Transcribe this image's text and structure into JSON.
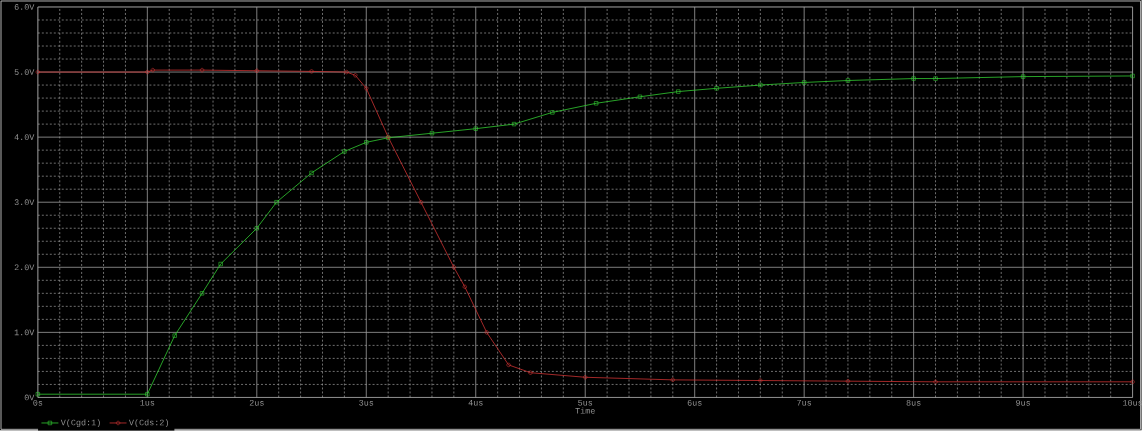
{
  "chart_data": {
    "type": "line",
    "xlabel": "Time",
    "xlim": [
      0,
      10
    ],
    "ylim": [
      0,
      6
    ],
    "xticks": [
      {
        "value": 0,
        "label": "0s"
      },
      {
        "value": 1,
        "label": "1us"
      },
      {
        "value": 2,
        "label": "2us"
      },
      {
        "value": 3,
        "label": "3us"
      },
      {
        "value": 4,
        "label": "4us"
      },
      {
        "value": 5,
        "label": "5us"
      },
      {
        "value": 6,
        "label": "6us"
      },
      {
        "value": 7,
        "label": "7us"
      },
      {
        "value": 8,
        "label": "8us"
      },
      {
        "value": 9,
        "label": "9us"
      },
      {
        "value": 10,
        "label": "10us"
      }
    ],
    "yticks": [
      {
        "value": 0,
        "label": "0V"
      },
      {
        "value": 1,
        "label": "1.0V"
      },
      {
        "value": 2,
        "label": "2.0V"
      },
      {
        "value": 3,
        "label": "3.0V"
      },
      {
        "value": 4,
        "label": "4.0V"
      },
      {
        "value": 5,
        "label": "5.0V"
      },
      {
        "value": 6,
        "label": "6.0V"
      }
    ],
    "grid": true,
    "legend": "bottom left",
    "line_style": "solid",
    "series": [
      {
        "name": "V(Cgd:1)",
        "color": "#33cc33",
        "marker": "square",
        "x": [
          0,
          1.0,
          1.25,
          1.5,
          1.67,
          2.0,
          2.18,
          2.5,
          2.8,
          3.0,
          3.2,
          3.6,
          4.0,
          4.35,
          4.7,
          5.1,
          5.5,
          5.85,
          6.2,
          6.6,
          7.0,
          7.4,
          8.0,
          8.2,
          9.0,
          10.0
        ],
        "values": [
          0.05,
          0.05,
          0.95,
          1.6,
          2.05,
          2.6,
          3.0,
          3.45,
          3.78,
          3.92,
          3.99,
          4.06,
          4.13,
          4.2,
          4.38,
          4.52,
          4.62,
          4.7,
          4.75,
          4.8,
          4.84,
          4.87,
          4.9,
          4.9,
          4.93,
          4.94
        ]
      },
      {
        "name": "V(Cds:2)",
        "color": "#cc3333",
        "marker": "circle",
        "x": [
          0,
          1.0,
          1.05,
          1.5,
          2.0,
          2.5,
          2.82,
          2.9,
          3.0,
          3.2,
          3.5,
          3.8,
          3.9,
          4.1,
          4.3,
          4.5,
          5.0,
          5.8,
          6.6,
          7.4,
          8.2,
          10.0
        ],
        "values": [
          5.0,
          5.0,
          5.03,
          5.03,
          5.02,
          5.01,
          5.0,
          4.95,
          4.75,
          4.0,
          3.0,
          2.0,
          1.7,
          1.0,
          0.5,
          0.38,
          0.31,
          0.27,
          0.26,
          0.25,
          0.24,
          0.24
        ]
      }
    ]
  }
}
